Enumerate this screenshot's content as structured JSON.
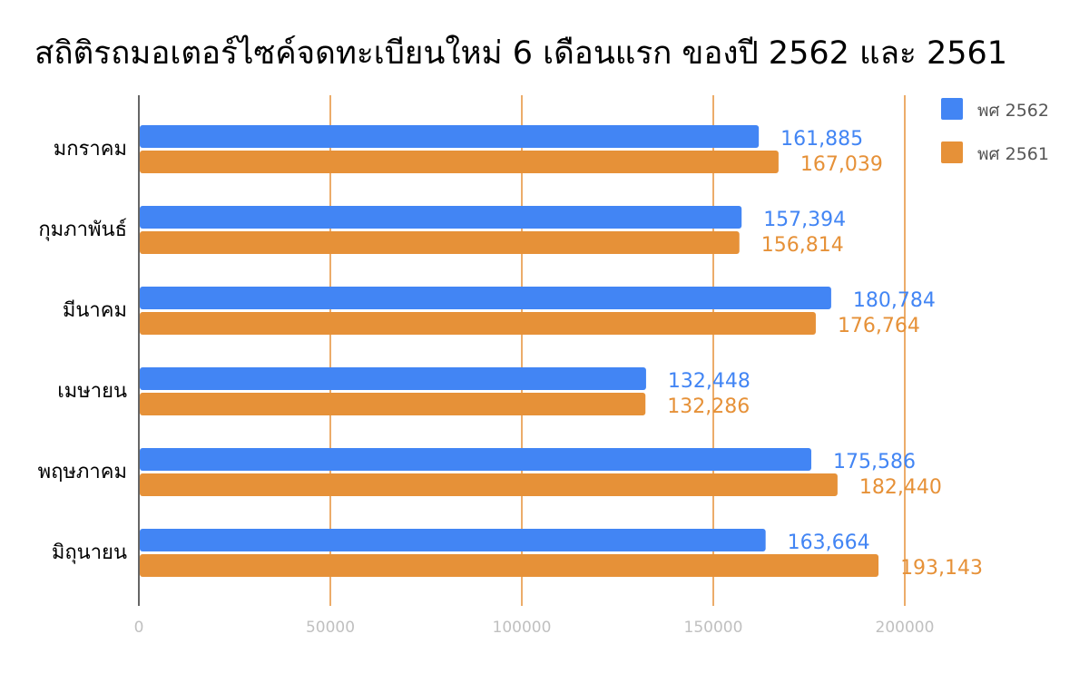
{
  "chart_data": {
    "type": "bar",
    "orientation": "horizontal",
    "title": "สถิติรถมอเตอร์ไซค์จดทะเบียนใหม่ 6 เดือนแรก ของปี 2562 และ 2561",
    "categories": [
      "มกราคม",
      "กุมภาพันธ์",
      "มีนาคม",
      "เมษายน",
      "พฤษภาคม",
      "มิถุนายน"
    ],
    "series": [
      {
        "name": "พศ 2562",
        "color": "#4285f4",
        "values": [
          161885,
          157394,
          180784,
          132448,
          175586,
          163664
        ],
        "labels": [
          "161,885",
          "157,394",
          "180,784",
          "132,448",
          "175,586",
          "163,664"
        ]
      },
      {
        "name": "พศ 2561",
        "color": "#e69138",
        "values": [
          167039,
          156814,
          176764,
          132286,
          182440,
          193143
        ],
        "labels": [
          "167,039",
          "156,814",
          "176,764",
          "132,286",
          "182,440",
          "193,143"
        ]
      }
    ],
    "x_ticks": [
      "0",
      "50000",
      "100000",
      "150000",
      "200000"
    ],
    "xlim": [
      0,
      200000
    ],
    "grid": true,
    "grid_color": "#e69138",
    "legend": "top-right"
  }
}
